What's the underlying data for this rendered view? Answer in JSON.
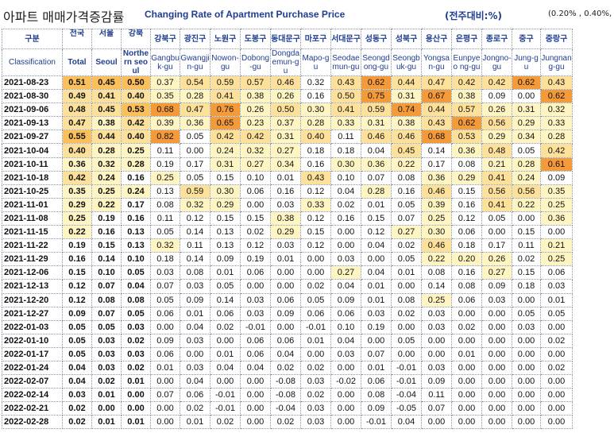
{
  "title": {
    "korean": "아파트 매매가격증감률",
    "english": "Changing Rate of Apartment Purchase Price",
    "unit": "(전주대비:%)",
    "legend": "(0.20% , 0.40%, 0."
  },
  "header": {
    "classification_kr": "구분",
    "classification_en": "Classification",
    "columns": [
      {
        "kr": "전국",
        "en": "Total",
        "bold": true
      },
      {
        "kr": "서울",
        "en": "Seoul",
        "bold": true
      },
      {
        "kr": "강북",
        "en": "Northe rn seoul",
        "bold": true
      },
      {
        "kr": "강북구",
        "en": "Gangbu k-gu"
      },
      {
        "kr": "광진구",
        "en": "Gwangji n-gu"
      },
      {
        "kr": "노원구",
        "en": "Nowon-gu"
      },
      {
        "kr": "도봉구",
        "en": "Dobong-gu"
      },
      {
        "kr": "동대문구",
        "en": "Dongda emun-gu"
      },
      {
        "kr": "마포구",
        "en": "Mapo-gu"
      },
      {
        "kr": "서대문구",
        "en": "Seodae mun-gu"
      },
      {
        "kr": "성동구",
        "en": "Seongd ong-gu"
      },
      {
        "kr": "성북구",
        "en": "Seongb uk-gu"
      },
      {
        "kr": "용산구",
        "en": "Yongsa n-gu"
      },
      {
        "kr": "은평구",
        "en": "Eunpyeo ng-gu"
      },
      {
        "kr": "종로구",
        "en": "Jongno-gu"
      },
      {
        "kr": "중구",
        "en": "Jung-gu"
      },
      {
        "kr": "중랑구",
        "en": "Jungnan g-gu"
      }
    ]
  },
  "rows": [
    {
      "date": "2021-08-23",
      "v": [
        "0.51",
        "0.45",
        "0.50",
        "0.37",
        "0.54",
        "0.59",
        "0.57",
        "0.46",
        "0.32",
        "0.43",
        "0.62",
        "0.44",
        "0.47",
        "0.42",
        "0.42",
        "0.62",
        "0.43"
      ],
      "h": [
        3,
        3,
        3,
        1,
        2,
        2,
        2,
        2,
        0,
        2,
        4,
        2,
        2,
        2,
        2,
        4,
        2
      ]
    },
    {
      "date": "2021-08-30",
      "v": [
        "0.49",
        "0.41",
        "0.40",
        "0.35",
        "0.28",
        "0.41",
        "0.38",
        "0.26",
        "0.16",
        "0.50",
        "0.75",
        "0.31",
        "0.67",
        "0.38",
        "0.09",
        "0.00",
        "0.62"
      ],
      "h": [
        2,
        2,
        2,
        1,
        1,
        2,
        1,
        1,
        0,
        2,
        4,
        1,
        4,
        1,
        0,
        0,
        4
      ]
    },
    {
      "date": "2021-09-06",
      "v": [
        "0.48",
        "0.45",
        "0.53",
        "0.68",
        "0.47",
        "0.76",
        "0.26",
        "0.50",
        "0.30",
        "0.41",
        "0.59",
        "0.74",
        "0.44",
        "0.57",
        "0.26",
        "0.31",
        "0.32"
      ],
      "h": [
        2,
        2,
        3,
        4,
        2,
        4,
        1,
        2,
        1,
        2,
        2,
        4,
        2,
        2,
        1,
        1,
        1
      ]
    },
    {
      "date": "2021-09-13",
      "v": [
        "0.47",
        "0.38",
        "0.42",
        "0.39",
        "0.36",
        "0.65",
        "0.23",
        "0.37",
        "0.28",
        "0.33",
        "0.31",
        "0.38",
        "0.43",
        "0.62",
        "0.56",
        "0.29",
        "0.33"
      ],
      "h": [
        2,
        1,
        2,
        1,
        1,
        4,
        1,
        1,
        1,
        1,
        1,
        1,
        2,
        4,
        2,
        1,
        1
      ]
    },
    {
      "date": "2021-09-27",
      "v": [
        "0.55",
        "0.44",
        "0.40",
        "0.82",
        "0.05",
        "0.42",
        "0.42",
        "0.31",
        "0.40",
        "0.11",
        "0.46",
        "0.46",
        "0.68",
        "0.53",
        "0.29",
        "0.34",
        "0.28"
      ],
      "h": [
        3,
        2,
        2,
        4,
        0,
        2,
        2,
        1,
        2,
        0,
        2,
        2,
        4,
        2,
        1,
        1,
        1
      ]
    },
    {
      "date": "2021-10-04",
      "v": [
        "0.40",
        "0.28",
        "0.25",
        "0.11",
        "0.00",
        "0.24",
        "0.32",
        "0.27",
        "0.18",
        "0.18",
        "0.04",
        "0.45",
        "0.14",
        "0.36",
        "0.48",
        "0.05",
        "0.42"
      ],
      "h": [
        2,
        1,
        1,
        0,
        0,
        1,
        1,
        1,
        0,
        0,
        0,
        2,
        0,
        1,
        2,
        0,
        2
      ]
    },
    {
      "date": "2021-10-11",
      "v": [
        "0.36",
        "0.32",
        "0.28",
        "0.19",
        "0.17",
        "0.31",
        "0.27",
        "0.34",
        "0.16",
        "0.30",
        "0.36",
        "0.22",
        "0.17",
        "0.08",
        "0.21",
        "0.28",
        "0.61"
      ],
      "h": [
        1,
        1,
        1,
        0,
        0,
        1,
        1,
        1,
        0,
        1,
        1,
        1,
        0,
        0,
        1,
        1,
        4
      ]
    },
    {
      "date": "2021-10-18",
      "v": [
        "0.42",
        "0.24",
        "0.16",
        "0.25",
        "0.05",
        "0.15",
        "0.10",
        "0.01",
        "0.43",
        "0.10",
        "0.07",
        "0.08",
        "0.36",
        "0.29",
        "0.41",
        "0.24",
        "0.09"
      ],
      "h": [
        2,
        1,
        0,
        1,
        0,
        0,
        0,
        0,
        2,
        0,
        0,
        0,
        1,
        1,
        2,
        1,
        0
      ]
    },
    {
      "date": "2021-10-25",
      "v": [
        "0.35",
        "0.25",
        "0.24",
        "0.13",
        "0.59",
        "0.30",
        "0.06",
        "0.16",
        "0.12",
        "0.04",
        "0.28",
        "0.16",
        "0.46",
        "0.15",
        "0.56",
        "0.56",
        "0.35"
      ],
      "h": [
        1,
        1,
        1,
        0,
        2,
        1,
        0,
        0,
        0,
        0,
        1,
        0,
        2,
        0,
        2,
        2,
        1
      ]
    },
    {
      "date": "2021-11-01",
      "v": [
        "0.29",
        "0.22",
        "0.17",
        "0.08",
        "0.32",
        "0.29",
        "0.00",
        "0.03",
        "0.33",
        "0.02",
        "0.01",
        "0.05",
        "0.39",
        "0.16",
        "0.41",
        "0.22",
        "0.25"
      ],
      "h": [
        1,
        1,
        0,
        0,
        1,
        1,
        0,
        0,
        1,
        0,
        0,
        0,
        1,
        0,
        2,
        1,
        1
      ]
    },
    {
      "date": "2021-11-08",
      "v": [
        "0.25",
        "0.19",
        "0.16",
        "0.11",
        "0.12",
        "0.15",
        "0.15",
        "0.38",
        "0.12",
        "0.16",
        "0.15",
        "0.07",
        "0.25",
        "0.12",
        "0.05",
        "0.00",
        "0.36"
      ],
      "h": [
        1,
        0,
        0,
        0,
        0,
        0,
        0,
        1,
        0,
        0,
        0,
        0,
        1,
        0,
        0,
        0,
        1
      ]
    },
    {
      "date": "2021-11-15",
      "v": [
        "0.22",
        "0.16",
        "0.13",
        "0.05",
        "0.14",
        "0.13",
        "0.02",
        "0.29",
        "0.15",
        "0.00",
        "0.12",
        "0.27",
        "0.30",
        "0.06",
        "0.00",
        "0.15",
        "0.00"
      ],
      "h": [
        1,
        0,
        0,
        0,
        0,
        0,
        0,
        1,
        0,
        0,
        0,
        1,
        1,
        0,
        0,
        0,
        0
      ]
    },
    {
      "date": "2021-11-22",
      "v": [
        "0.19",
        "0.15",
        "0.13",
        "0.32",
        "0.11",
        "0.13",
        "0.12",
        "0.03",
        "0.12",
        "0.00",
        "0.04",
        "0.02",
        "0.46",
        "0.18",
        "0.17",
        "0.11",
        "0.21"
      ],
      "h": [
        0,
        0,
        0,
        1,
        0,
        0,
        0,
        0,
        0,
        0,
        0,
        0,
        2,
        0,
        0,
        0,
        1
      ]
    },
    {
      "date": "2021-11-29",
      "v": [
        "0.16",
        "0.14",
        "0.10",
        "0.18",
        "0.14",
        "0.09",
        "0.19",
        "0.01",
        "0.00",
        "0.03",
        "0.00",
        "0.05",
        "0.22",
        "0.20",
        "0.26",
        "0.02",
        "0.25"
      ],
      "h": [
        0,
        0,
        0,
        0,
        0,
        0,
        0,
        0,
        0,
        0,
        0,
        0,
        1,
        1,
        1,
        0,
        1
      ]
    },
    {
      "date": "2021-12-06",
      "v": [
        "0.15",
        "0.10",
        "0.05",
        "0.03",
        "0.08",
        "0.01",
        "0.06",
        "0.00",
        "0.00",
        "0.27",
        "0.04",
        "0.01",
        "0.08",
        "0.16",
        "0.27",
        "0.15",
        "0.06"
      ],
      "h": [
        0,
        0,
        0,
        0,
        0,
        0,
        0,
        0,
        0,
        1,
        0,
        0,
        0,
        0,
        1,
        0,
        0
      ]
    },
    {
      "date": "2021-12-13",
      "v": [
        "0.12",
        "0.07",
        "0.04",
        "0.07",
        "0.03",
        "0.05",
        "0.00",
        "0.00",
        "0.02",
        "0.04",
        "0.01",
        "0.00",
        "0.14",
        "0.08",
        "0.09",
        "0.18",
        "0.03"
      ],
      "h": [
        0,
        0,
        0,
        0,
        0,
        0,
        0,
        0,
        0,
        0,
        0,
        0,
        0,
        0,
        0,
        0,
        0
      ]
    },
    {
      "date": "2021-12-20",
      "v": [
        "0.12",
        "0.08",
        "0.08",
        "0.05",
        "0.09",
        "0.14",
        "0.03",
        "0.06",
        "0.05",
        "0.09",
        "0.01",
        "0.08",
        "0.25",
        "0.06",
        "0.03",
        "0.00",
        "0.01"
      ],
      "h": [
        0,
        0,
        0,
        0,
        0,
        0,
        0,
        0,
        0,
        0,
        0,
        0,
        1,
        0,
        0,
        0,
        0
      ]
    },
    {
      "date": "2021-12-27",
      "v": [
        "0.09",
        "0.07",
        "0.05",
        "0.06",
        "0.01",
        "0.06",
        "0.03",
        "0.09",
        "0.06",
        "0.06",
        "0.03",
        "0.02",
        "0.03",
        "0.00",
        "0.00",
        "0.05",
        "0.05"
      ],
      "h": [
        0,
        0,
        0,
        0,
        0,
        0,
        0,
        0,
        0,
        0,
        0,
        0,
        0,
        0,
        0,
        0,
        0
      ]
    },
    {
      "date": "2022-01-03",
      "v": [
        "0.05",
        "0.05",
        "0.03",
        "0.00",
        "0.04",
        "0.02",
        "-0.01",
        "0.00",
        "-0.01",
        "0.10",
        "0.19",
        "0.00",
        "0.03",
        "0.02",
        "0.00",
        "0.03",
        "0.00"
      ],
      "h": [
        0,
        0,
        0,
        0,
        0,
        0,
        0,
        0,
        0,
        0,
        0,
        0,
        0,
        0,
        0,
        0,
        0
      ]
    },
    {
      "date": "2022-01-10",
      "v": [
        "0.05",
        "0.03",
        "0.02",
        "0.09",
        "0.03",
        "0.00",
        "0.06",
        "0.06",
        "0.01",
        "0.04",
        "0.00",
        "0.05",
        "0.00",
        "0.00",
        "0.00",
        "0.00",
        "0.02"
      ],
      "h": [
        0,
        0,
        0,
        0,
        0,
        0,
        0,
        0,
        0,
        0,
        0,
        0,
        0,
        0,
        0,
        0,
        0
      ]
    },
    {
      "date": "2022-01-17",
      "v": [
        "0.05",
        "0.03",
        "0.03",
        "0.06",
        "0.00",
        "0.01",
        "0.06",
        "0.04",
        "0.00",
        "0.03",
        "0.07",
        "0.00",
        "0.00",
        "0.01",
        "0.00",
        "0.00",
        "0.00"
      ],
      "h": [
        0,
        0,
        0,
        0,
        0,
        0,
        0,
        0,
        0,
        0,
        0,
        0,
        0,
        0,
        0,
        0,
        0
      ]
    },
    {
      "date": "2022-01-24",
      "v": [
        "0.04",
        "0.03",
        "0.02",
        "0.01",
        "0.03",
        "0.04",
        "0.04",
        "0.02",
        "0.02",
        "0.00",
        "0.01",
        "-0.01",
        "0.03",
        "0.00",
        "0.00",
        "0.00",
        "0.02"
      ],
      "h": [
        0,
        0,
        0,
        0,
        0,
        0,
        0,
        0,
        0,
        0,
        0,
        0,
        0,
        0,
        0,
        0,
        0
      ]
    },
    {
      "date": "2022-02-07",
      "v": [
        "0.04",
        "0.02",
        "0.01",
        "0.00",
        "0.04",
        "0.00",
        "0.00",
        "-0.08",
        "0.03",
        "-0.02",
        "0.06",
        "-0.01",
        "0.09",
        "0.00",
        "0.00",
        "0.00",
        "0.00"
      ],
      "h": [
        0,
        0,
        0,
        0,
        0,
        0,
        0,
        0,
        0,
        0,
        0,
        0,
        0,
        0,
        0,
        0,
        0
      ]
    },
    {
      "date": "2022-02-14",
      "v": [
        "0.03",
        "0.01",
        "0.00",
        "0.07",
        "0.06",
        "-0.01",
        "0.00",
        "-0.08",
        "0.02",
        "0.00",
        "0.08",
        "-0.04",
        "0.11",
        "0.00",
        "0.00",
        "0.00",
        "0.00"
      ],
      "h": [
        0,
        0,
        0,
        0,
        0,
        0,
        0,
        0,
        0,
        0,
        0,
        0,
        0,
        0,
        0,
        0,
        0
      ]
    },
    {
      "date": "2022-02-21",
      "v": [
        "0.02",
        "0.00",
        "0.00",
        "0.00",
        "0.02",
        "-0.01",
        "0.00",
        "-0.04",
        "0.03",
        "0.00",
        "0.09",
        "-0.05",
        "0.07",
        "0.00",
        "0.00",
        "0.00",
        "0.00"
      ],
      "h": [
        0,
        0,
        0,
        0,
        0,
        0,
        0,
        0,
        0,
        0,
        0,
        0,
        0,
        0,
        0,
        0,
        0
      ]
    },
    {
      "date": "2022-02-28",
      "v": [
        "0.02",
        "0.01",
        "0.01",
        "0.00",
        "0.01",
        "0.02",
        "0.00",
        "0.02",
        "0.03",
        "0.00",
        "-0.01",
        "0.04",
        "0.00",
        "0.00",
        "0.00",
        "0.00",
        "0.00"
      ],
      "h": [
        0,
        0,
        0,
        0,
        0,
        0,
        0,
        0,
        0,
        0,
        0,
        0,
        0,
        0,
        0,
        0,
        0
      ]
    }
  ]
}
